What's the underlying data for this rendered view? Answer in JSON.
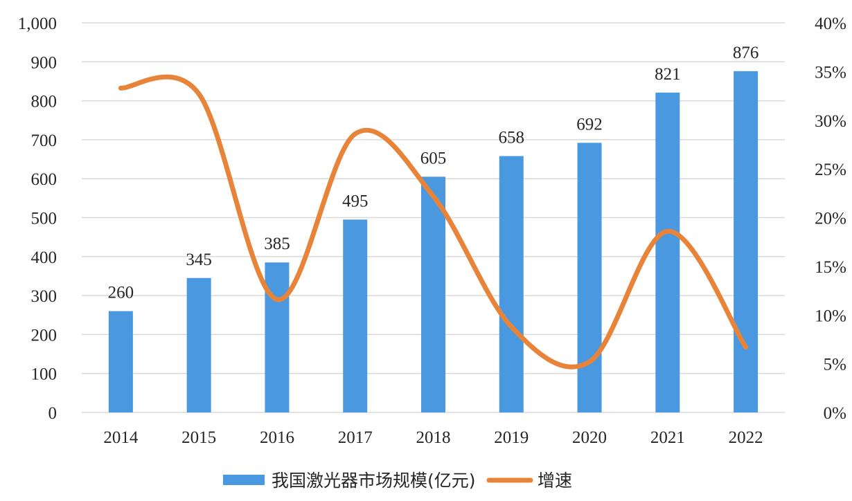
{
  "chart_data": {
    "type": "bar",
    "categories": [
      "2014",
      "2015",
      "2016",
      "2017",
      "2018",
      "2019",
      "2020",
      "2021",
      "2022"
    ],
    "series": [
      {
        "name": "我国激光器市场规模(亿元)",
        "type": "bar",
        "axis": "left",
        "values": [
          260,
          345,
          385,
          495,
          605,
          658,
          692,
          821,
          876
        ],
        "color": "#4a99e0"
      },
      {
        "name": "增速",
        "type": "line",
        "axis": "right",
        "smooth": true,
        "values": [
          33.3,
          32.7,
          11.6,
          28.6,
          22.2,
          8.8,
          5.2,
          18.6,
          6.7
        ],
        "color": "#e8843a"
      }
    ],
    "y_left": {
      "lim": [
        0,
        1000
      ],
      "ticks": [
        0,
        100,
        200,
        300,
        400,
        500,
        600,
        700,
        800,
        900,
        1000
      ],
      "tick_labels": [
        "0",
        "100",
        "200",
        "300",
        "400",
        "500",
        "600",
        "700",
        "800",
        "900",
        "1,000"
      ]
    },
    "y_right": {
      "lim": [
        0,
        40
      ],
      "ticks": [
        0,
        5,
        10,
        15,
        20,
        25,
        30,
        35,
        40
      ],
      "tick_labels": [
        "0%",
        "5%",
        "10%",
        "15%",
        "20%",
        "25%",
        "30%",
        "35%",
        "40%"
      ]
    },
    "data_labels": [
      "260",
      "345",
      "385",
      "495",
      "605",
      "658",
      "692",
      "821",
      "876"
    ],
    "grid": true,
    "legend": {
      "position": "bottom",
      "entries": [
        "我国激光器市场规模(亿元)",
        "增速"
      ]
    }
  }
}
